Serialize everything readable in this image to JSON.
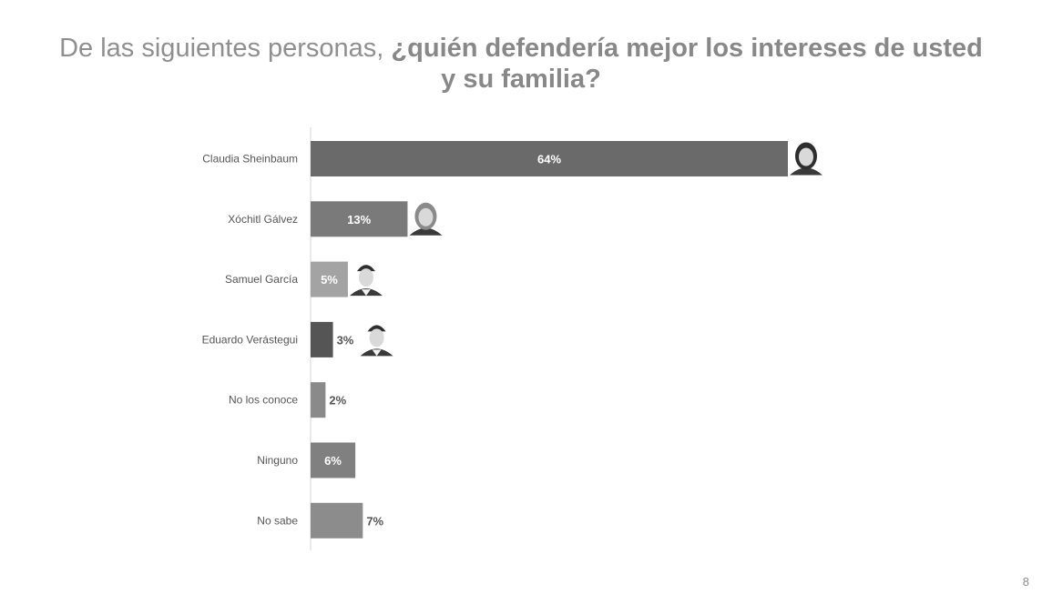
{
  "title": {
    "regular": "De las siguientes personas, ",
    "bold": "¿quién defendería mejor los intereses de usted y su familia?"
  },
  "page_number": "8",
  "chart_data": {
    "type": "bar",
    "orientation": "horizontal",
    "categories": [
      "Claudia Sheinbaum",
      "Xóchitl Gálvez",
      "Samuel García",
      "Eduardo Verástegui",
      "No los conoce",
      "Ninguno",
      "No sabe"
    ],
    "values": [
      64,
      13,
      5,
      3,
      2,
      6,
      7
    ],
    "value_labels": [
      "64%",
      "13%",
      "5%",
      "3%",
      "2%",
      "6%",
      "7%"
    ],
    "unit": "%",
    "xlim": [
      0,
      64
    ],
    "grid": false,
    "legend": "none",
    "bar_colors": [
      "#6a6a6a",
      "#7a7a7a",
      "#a3a3a3",
      "#555555",
      "#8a8a8a",
      "#808080",
      "#8c8c8c"
    ],
    "label_inside": [
      true,
      true,
      true,
      false,
      false,
      true,
      false
    ],
    "portraits": [
      "claudia-sheinbaum-portrait",
      "xochitl-galvez-portrait",
      "samuel-garcia-portrait",
      "eduardo-verastegui-portrait",
      null,
      null,
      null
    ]
  }
}
